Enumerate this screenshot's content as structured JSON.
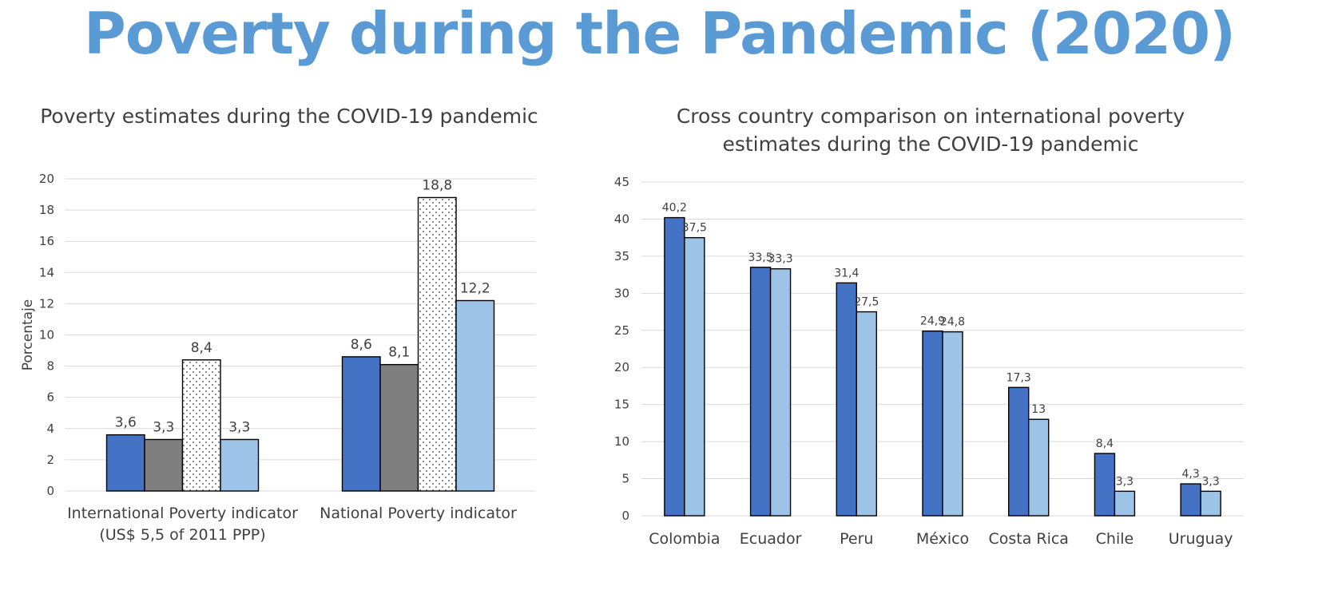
{
  "page": {
    "title": "Poverty during the Pandemic (2020)"
  },
  "chart_data": [
    {
      "type": "bar",
      "title": "Poverty estimates during the COVID-19 pandemic",
      "ylabel": "Porcentaje",
      "xlabel": "",
      "ylim": [
        0,
        20
      ],
      "yticks": [
        "0",
        "2",
        "4",
        "6",
        "8",
        "10",
        "12",
        "14",
        "16",
        "18",
        "20"
      ],
      "grid": true,
      "categories": [
        "International Poverty indicator\n(US$ 5,5 of 2011 PPP)",
        "National Poverty indicator"
      ],
      "series": [
        {
          "values": [
            3.6,
            8.6
          ],
          "labels": [
            "3,6",
            "8,6"
          ],
          "color": "#4472c4",
          "pattern": "solid"
        },
        {
          "values": [
            3.3,
            8.1
          ],
          "labels": [
            "3,3",
            "8,1"
          ],
          "color": "#7f7f7f",
          "pattern": "solid"
        },
        {
          "values": [
            8.4,
            18.8
          ],
          "labels": [
            "8,4",
            "18,8"
          ],
          "color": "#ffffff",
          "pattern": "dotted"
        },
        {
          "values": [
            3.3,
            12.2
          ],
          "labels": [
            "3,3",
            "12,2"
          ],
          "color": "#9dc3e6",
          "pattern": "solid"
        }
      ]
    },
    {
      "type": "bar",
      "title": "Cross country comparison on international poverty\nestimates during the COVID-19 pandemic",
      "ylabel": "",
      "xlabel": "",
      "ylim": [
        0,
        45
      ],
      "yticks": [
        "0",
        "5",
        "10",
        "15",
        "20",
        "25",
        "30",
        "35",
        "40",
        "45"
      ],
      "grid": true,
      "categories": [
        "Colombia",
        "Ecuador",
        "Peru",
        "México",
        "Costa Rica",
        "Chile",
        "Uruguay"
      ],
      "series": [
        {
          "values": [
            40.2,
            33.5,
            31.4,
            24.9,
            17.3,
            8.4,
            4.3
          ],
          "labels": [
            "40,2",
            "33,5",
            "31,4",
            "24,9",
            "17,3",
            "8,4",
            "4,3"
          ],
          "color": "#4472c4"
        },
        {
          "values": [
            37.5,
            33.3,
            27.5,
            24.8,
            13,
            3.3,
            3.3
          ],
          "labels": [
            "37,5",
            "33,3",
            "27,5",
            "24,8",
            "13",
            "3,3",
            "3,3"
          ],
          "color": "#9dc3e6"
        }
      ]
    }
  ]
}
